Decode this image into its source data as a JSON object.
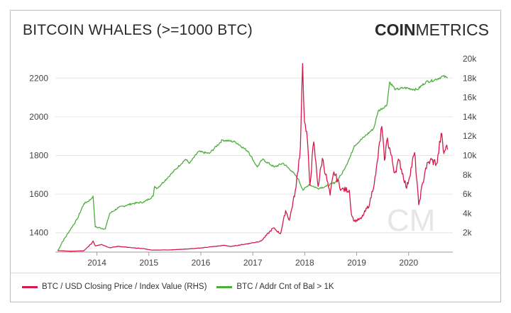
{
  "header": {
    "title": "BITCOIN WHALES (>=1000 BTC)",
    "logo_bold": "COIN",
    "logo_light": "METRICS"
  },
  "colors": {
    "price": "#d6194b",
    "whales": "#4caf3c",
    "grid": "#e6e6e6",
    "axis_text": "#444444"
  },
  "chart_data": {
    "type": "line",
    "x_ticks": [
      "2014",
      "2015",
      "2016",
      "2017",
      "2018",
      "2019",
      "2020"
    ],
    "left_axis": {
      "ticks": [
        "1400",
        "1600",
        "1800",
        "2000",
        "2200"
      ],
      "range": [
        1300,
        2300
      ]
    },
    "right_axis": {
      "ticks": [
        "2k",
        "4k",
        "6k",
        "8k",
        "10k",
        "12k",
        "14k",
        "16k",
        "18k",
        "20k"
      ],
      "range": [
        0,
        20000
      ]
    },
    "grid": true,
    "legend_position": "bottom-left",
    "series": [
      {
        "name": "BTC / USD Closing Price / Index Value (RHS)",
        "axis": "right",
        "points": [
          [
            "2013-04-01",
            150
          ],
          [
            "2013-07-01",
            90
          ],
          [
            "2013-10-01",
            130
          ],
          [
            "2013-11-25",
            900
          ],
          [
            "2013-12-05",
            1150
          ],
          [
            "2013-12-20",
            650
          ],
          [
            "2014-02-01",
            800
          ],
          [
            "2014-04-01",
            450
          ],
          [
            "2014-06-01",
            600
          ],
          [
            "2014-09-01",
            450
          ],
          [
            "2014-12-01",
            350
          ],
          [
            "2015-01-15",
            210
          ],
          [
            "2015-06-01",
            230
          ],
          [
            "2015-11-01",
            350
          ],
          [
            "2016-01-01",
            430
          ],
          [
            "2016-06-15",
            700
          ],
          [
            "2016-08-01",
            580
          ],
          [
            "2016-12-31",
            960
          ],
          [
            "2017-03-01",
            1150
          ],
          [
            "2017-05-25",
            2500
          ],
          [
            "2017-07-15",
            1900
          ],
          [
            "2017-08-20",
            4300
          ],
          [
            "2017-09-15",
            3300
          ],
          [
            "2017-11-01",
            6700
          ],
          [
            "2017-12-01",
            10800
          ],
          [
            "2017-12-17",
            19500
          ],
          [
            "2017-12-30",
            13500
          ],
          [
            "2018-01-20",
            11500
          ],
          [
            "2018-02-06",
            6900
          ],
          [
            "2018-03-05",
            11400
          ],
          [
            "2018-04-05",
            6800
          ],
          [
            "2018-05-05",
            9700
          ],
          [
            "2018-06-28",
            5900
          ],
          [
            "2018-07-25",
            8300
          ],
          [
            "2018-09-15",
            6500
          ],
          [
            "2018-11-10",
            6400
          ],
          [
            "2018-11-25",
            3900
          ],
          [
            "2018-12-15",
            3200
          ],
          [
            "2019-02-01",
            3450
          ],
          [
            "2019-04-02",
            5000
          ],
          [
            "2019-05-15",
            8000
          ],
          [
            "2019-06-26",
            13000
          ],
          [
            "2019-07-15",
            9500
          ],
          [
            "2019-08-05",
            11800
          ],
          [
            "2019-09-25",
            8200
          ],
          [
            "2019-10-26",
            9500
          ],
          [
            "2019-12-18",
            6600
          ],
          [
            "2020-02-12",
            10300
          ],
          [
            "2020-03-12",
            4900
          ],
          [
            "2020-04-30",
            8700
          ],
          [
            "2020-06-01",
            9500
          ],
          [
            "2020-07-20",
            9200
          ],
          [
            "2020-08-17",
            12300
          ],
          [
            "2020-09-05",
            10200
          ],
          [
            "2020-09-20",
            10900
          ],
          [
            "2020-10-01",
            10600
          ]
        ]
      },
      {
        "name": "BTC / Addr Cnt of Bal > 1K",
        "axis": "left",
        "points": [
          [
            "2013-04-01",
            1305
          ],
          [
            "2013-05-01",
            1350
          ],
          [
            "2013-07-01",
            1420
          ],
          [
            "2013-08-15",
            1470
          ],
          [
            "2013-10-01",
            1550
          ],
          [
            "2013-11-15",
            1570
          ],
          [
            "2013-12-05",
            1590
          ],
          [
            "2013-12-20",
            1430
          ],
          [
            "2014-03-01",
            1420
          ],
          [
            "2014-04-01",
            1500
          ],
          [
            "2014-06-01",
            1530
          ],
          [
            "2014-09-01",
            1550
          ],
          [
            "2014-12-01",
            1560
          ],
          [
            "2015-02-01",
            1590
          ],
          [
            "2015-02-10",
            1640
          ],
          [
            "2015-03-01",
            1630
          ],
          [
            "2015-06-01",
            1700
          ],
          [
            "2015-09-15",
            1780
          ],
          [
            "2015-10-15",
            1760
          ],
          [
            "2015-12-15",
            1820
          ],
          [
            "2016-03-01",
            1810
          ],
          [
            "2016-06-01",
            1880
          ],
          [
            "2016-09-01",
            1870
          ],
          [
            "2016-12-01",
            1820
          ],
          [
            "2017-02-01",
            1740
          ],
          [
            "2017-03-10",
            1780
          ],
          [
            "2017-06-01",
            1740
          ],
          [
            "2017-08-01",
            1760
          ],
          [
            "2017-10-01",
            1720
          ],
          [
            "2017-11-15",
            1680
          ],
          [
            "2017-12-20",
            1620
          ],
          [
            "2018-02-01",
            1650
          ],
          [
            "2018-04-01",
            1630
          ],
          [
            "2018-06-01",
            1640
          ],
          [
            "2018-08-01",
            1660
          ],
          [
            "2018-09-15",
            1700
          ],
          [
            "2018-11-15",
            1790
          ],
          [
            "2018-12-15",
            1850
          ],
          [
            "2019-03-01",
            1900
          ],
          [
            "2019-05-01",
            1940
          ],
          [
            "2019-06-01",
            2030
          ],
          [
            "2019-08-01",
            2060
          ],
          [
            "2019-08-20",
            2180
          ],
          [
            "2019-10-01",
            2140
          ],
          [
            "2019-12-01",
            2150
          ],
          [
            "2020-03-01",
            2140
          ],
          [
            "2020-05-01",
            2180
          ],
          [
            "2020-07-01",
            2190
          ],
          [
            "2020-09-01",
            2210
          ],
          [
            "2020-10-01",
            2200
          ]
        ]
      }
    ]
  }
}
